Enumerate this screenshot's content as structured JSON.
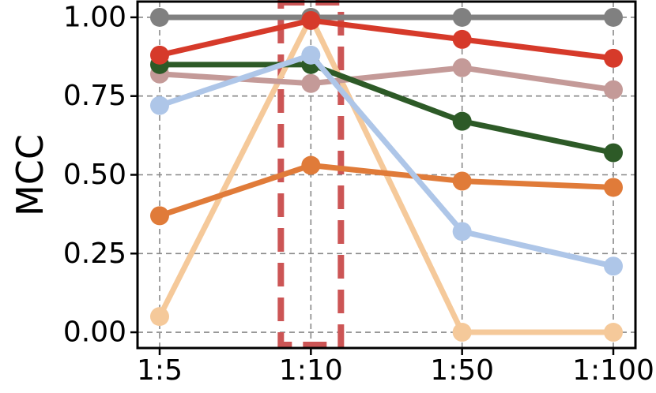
{
  "chart_data": {
    "type": "line",
    "title": "",
    "xlabel": "",
    "ylabel": "MCC",
    "categories": [
      "1:5",
      "1:10",
      "1:50",
      "1:100"
    ],
    "ylim": [
      -0.05,
      1.05
    ],
    "yticks": [
      0.0,
      0.25,
      0.5,
      0.75,
      1.0
    ],
    "ytick_labels": [
      "0.00",
      "0.25",
      "0.50",
      "0.75",
      "1.00"
    ],
    "grid": true,
    "legend": "none",
    "highlight": {
      "category": "1:10",
      "style": "dashed box",
      "color": "#cc5555"
    },
    "series": [
      {
        "color": "#f5c99a",
        "values": [
          0.05,
          1.0,
          0.0,
          0.0
        ]
      },
      {
        "color": "#808080",
        "values": [
          1.0,
          1.0,
          1.0,
          1.0
        ]
      },
      {
        "color": "#e07b39",
        "values": [
          0.37,
          0.53,
          0.48,
          0.46
        ]
      },
      {
        "color": "#c49a98",
        "values": [
          0.82,
          0.79,
          0.84,
          0.77
        ]
      },
      {
        "color": "#2d5a27",
        "values": [
          0.85,
          0.85,
          0.67,
          0.57
        ]
      },
      {
        "color": "#aec6e8",
        "values": [
          0.72,
          0.88,
          0.32,
          0.21
        ]
      },
      {
        "color": "#d63a2a",
        "values": [
          0.88,
          0.99,
          0.93,
          0.87
        ]
      }
    ]
  }
}
